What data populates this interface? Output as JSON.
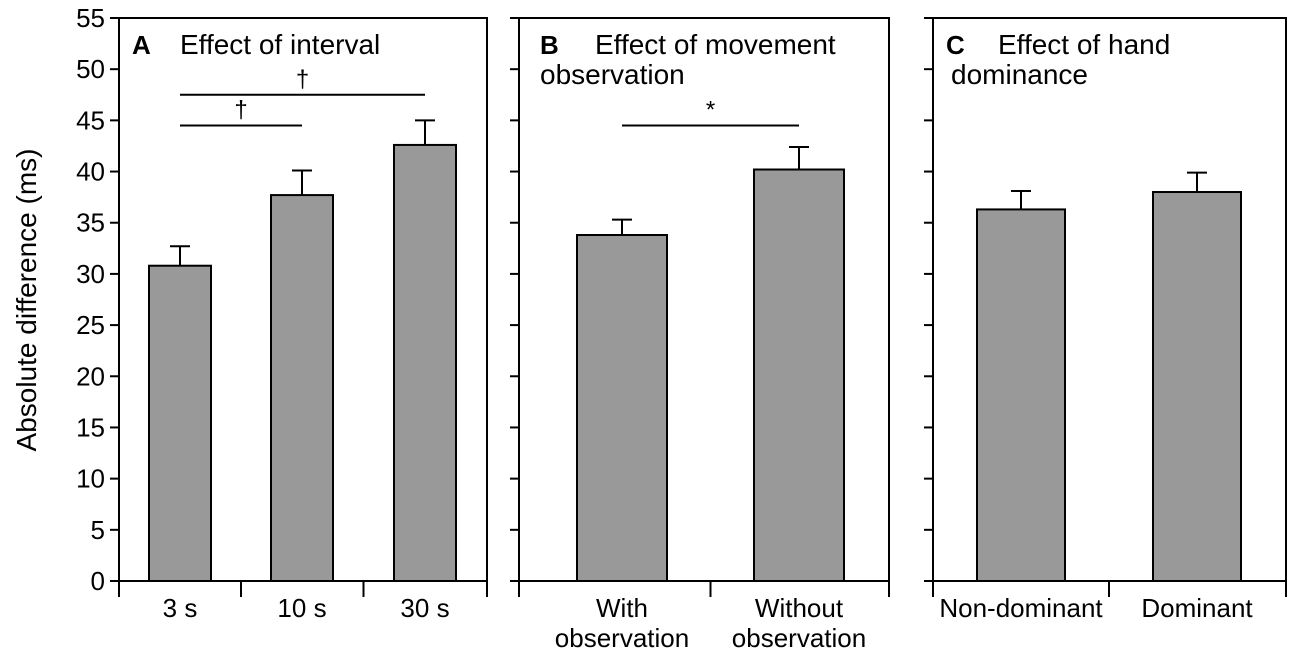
{
  "chart_data": [
    {
      "type": "bar",
      "panel_letter": "A",
      "title": "Effect of interval",
      "categories": [
        "3 s",
        "10 s",
        "30 s"
      ],
      "values": [
        30.8,
        37.7,
        42.6
      ],
      "errors": [
        1.9,
        2.4,
        2.4
      ],
      "significance": [
        {
          "from": 0,
          "to": 1,
          "level": 44.5,
          "mark": "†"
        },
        {
          "from": 0,
          "to": 2,
          "level": 47.5,
          "mark": "†"
        }
      ],
      "ylabel": "Absolute difference (ms)",
      "ylim": [
        0,
        55
      ],
      "yticks": [
        0,
        5,
        10,
        15,
        20,
        25,
        30,
        35,
        40,
        45,
        50,
        55
      ],
      "bar_color": "#999999"
    },
    {
      "type": "bar",
      "panel_letter": "B",
      "title": [
        "Effect of movement",
        "observation"
      ],
      "categories": [
        [
          "With",
          "observation"
        ],
        [
          "Without",
          "observation"
        ]
      ],
      "values": [
        33.8,
        40.2
      ],
      "errors": [
        1.5,
        2.2
      ],
      "significance": [
        {
          "from": 0,
          "to": 1,
          "level": 44.5,
          "mark": "*"
        }
      ],
      "ylim": [
        0,
        55
      ],
      "bar_color": "#999999"
    },
    {
      "type": "bar",
      "panel_letter": "C",
      "title": [
        "Effect of hand",
        "dominance"
      ],
      "categories": [
        "Non-dominant",
        "Dominant"
      ],
      "values": [
        36.3,
        38.0
      ],
      "errors": [
        1.8,
        1.9
      ],
      "significance": [],
      "ylim": [
        0,
        55
      ],
      "bar_color": "#999999"
    }
  ]
}
